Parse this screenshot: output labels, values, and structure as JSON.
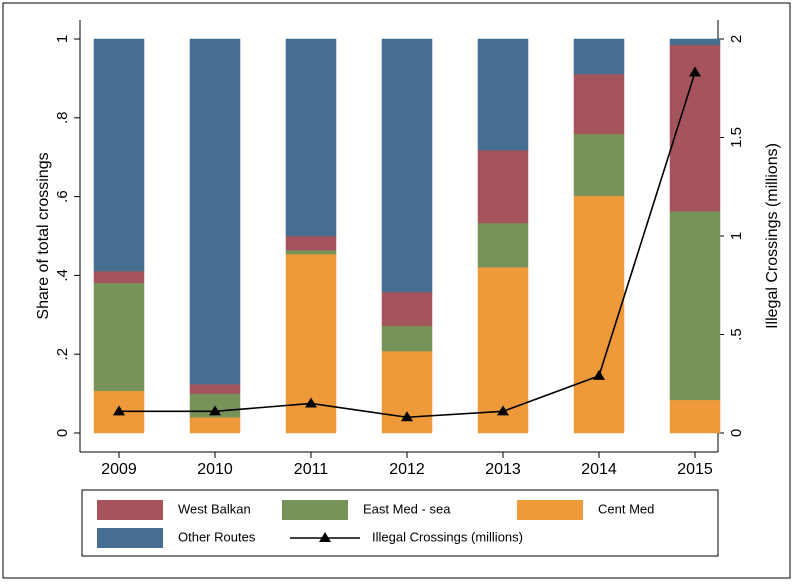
{
  "chart_data": {
    "type": "bar",
    "stacked": true,
    "y_label": "Share of total crossings",
    "y2_label": "Illegal Crossings (millions)",
    "categories": [
      "2009",
      "2010",
      "2011",
      "2012",
      "2013",
      "2014",
      "2015"
    ],
    "series": [
      {
        "name": "Cent Med",
        "color": "#ee9a3a",
        "values": [
          0.107,
          0.04,
          0.454,
          0.208,
          0.421,
          0.602,
          0.084
        ]
      },
      {
        "name": "East Med - sea",
        "color": "#78935a",
        "values": [
          0.274,
          0.06,
          0.01,
          0.064,
          0.112,
          0.157,
          0.479
        ]
      },
      {
        "name": "West Balkan",
        "color": "#a5545e",
        "values": [
          0.03,
          0.024,
          0.036,
          0.086,
          0.185,
          0.152,
          0.422
        ]
      },
      {
        "name": "Other Routes",
        "color": "#466e91",
        "values": [
          0.589,
          0.876,
          0.5,
          0.642,
          0.282,
          0.089,
          0.015
        ]
      },
      {
        "name": "Illegal Crossings (millions)",
        "color": "#000000",
        "type": "line",
        "axis": "y2",
        "values": [
          0.11,
          0.11,
          0.15,
          0.08,
          0.11,
          0.29,
          1.83
        ]
      }
    ],
    "ylim": [
      0,
      1
    ],
    "yticks": [
      0,
      {
        "value": 0.2,
        "label": ".2"
      },
      {
        "value": 0.4,
        "label": ".4"
      },
      {
        "value": 0.6,
        "label": ".6"
      },
      {
        "value": 0.8,
        "label": ".8"
      },
      1
    ],
    "y2lim": [
      0,
      2
    ],
    "y2ticks": [
      0,
      {
        "value": 0.5,
        "label": ".5"
      },
      1,
      1.5,
      2
    ],
    "grid": false
  }
}
